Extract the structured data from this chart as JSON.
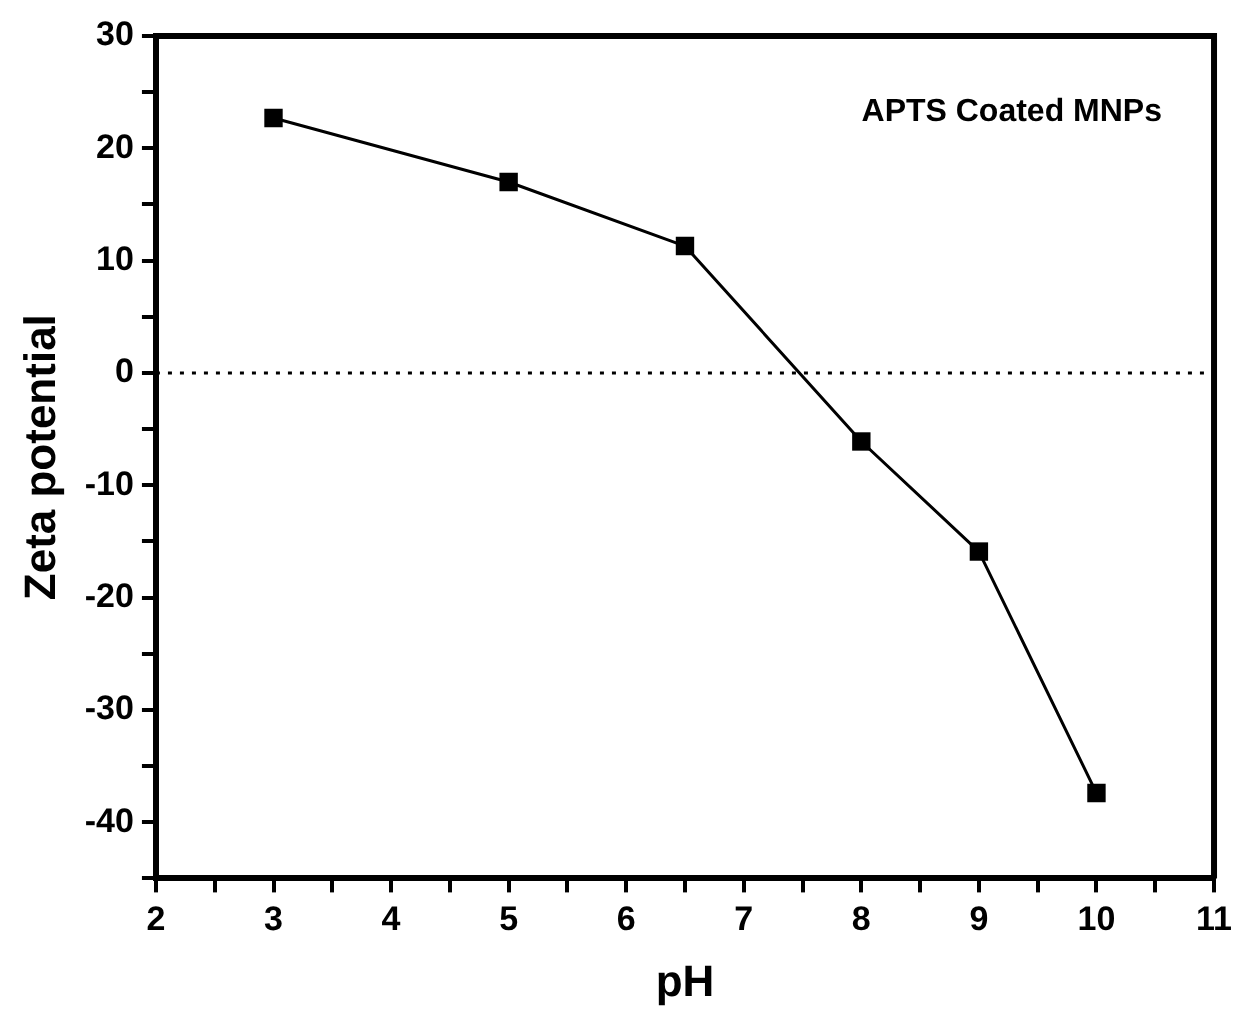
{
  "chart_data": {
    "type": "line",
    "xlabel": "pH",
    "ylabel": "Zeta potential",
    "annotations": [
      "APTS Coated MNPs"
    ],
    "x": [
      3,
      5,
      6.5,
      8,
      9,
      10
    ],
    "series": [
      {
        "color": "#000000",
        "values": [
          22.7,
          17.0,
          11.3,
          -6.1,
          -15.9,
          -37.4
        ]
      }
    ],
    "marker": "square",
    "line_style": "solid",
    "grid": false,
    "legend": false,
    "xlim": [
      2,
      11
    ],
    "xticks": [
      2,
      {
        "value": 2.5,
        "label": null
      },
      3,
      {
        "value": 3.5,
        "label": null
      },
      4,
      {
        "value": 4.5,
        "label": null
      },
      5,
      {
        "value": 5.5,
        "label": null
      },
      6,
      {
        "value": 6.5,
        "label": null
      },
      7,
      {
        "value": 7.5,
        "label": null
      },
      8,
      {
        "value": 8.5,
        "label": null
      },
      9,
      {
        "value": 9.5,
        "label": null
      },
      10,
      {
        "value": 10.5,
        "label": null
      },
      11
    ],
    "ylim": [
      -45,
      30
    ],
    "yticks": [
      {
        "value": -45,
        "label": null
      },
      -40,
      {
        "value": -35,
        "label": null
      },
      -30,
      {
        "value": -25,
        "label": null
      },
      -20,
      {
        "value": -15,
        "label": null
      },
      -10,
      {
        "value": -5,
        "label": null
      },
      0,
      {
        "value": 5,
        "label": null
      },
      10,
      {
        "value": 15,
        "label": null
      },
      20,
      {
        "value": 25,
        "label": null
      },
      30
    ],
    "ref_lines": [
      {
        "axis": "y",
        "value": 0,
        "line_style": "dotted"
      }
    ]
  }
}
